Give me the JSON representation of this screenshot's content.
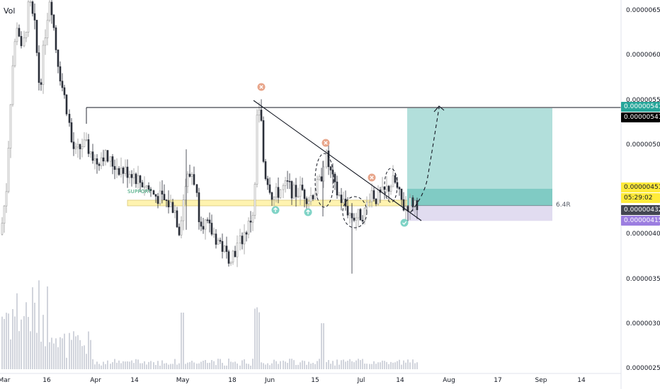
{
  "chart_data": {
    "type": "candlestick",
    "price_axis": {
      "ticks": [
        "0.00000650",
        "0.00000600",
        "0.00000550",
        "0.00000500",
        "0.00000450",
        "0.00000400",
        "0.00000350",
        "0.00000300",
        "0.00000250"
      ],
      "tick_values": [
        6.5,
        6.0,
        5.5,
        5.0,
        4.5,
        4.0,
        3.5,
        3.0,
        2.5
      ]
    },
    "time_axis": {
      "ticks": [
        "Mar",
        "16",
        "Apr",
        "14",
        "May",
        "18",
        "Jun",
        "15",
        "Jul",
        "14",
        "Aug",
        "17",
        "Sep",
        "14"
      ]
    },
    "volume_label": "Vol",
    "price_badges": {
      "target": "0.00000541",
      "target_alt": "0.00000541",
      "entry": "0.00000451",
      "countdown": "05:29:02",
      "last": "0.00000432",
      "stop": "0.00000415"
    },
    "annotations": {
      "support_label": "SUPPORT",
      "risk_reward": "6.4R"
    },
    "colors": {
      "up": "#9a9a9a",
      "down": "#2a2e39",
      "volume": "#d1d4dc",
      "profit_zone": "#b2dfdb",
      "entry_zone": "#80cbc4",
      "stop_zone": "#e1dcf0",
      "support_band": "#fff3b0",
      "target_badge": "#26a69a",
      "entry_badge": "#ffeb3b",
      "stop_badge": "#9c7ee0",
      "last_badge": "#434651"
    }
  }
}
